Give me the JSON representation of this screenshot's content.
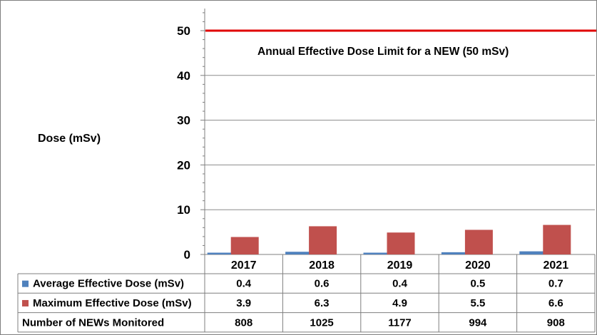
{
  "chart_data": {
    "type": "bar",
    "ylabel": "Dose (mSv)",
    "ylim": [
      0,
      55
    ],
    "yticks": [
      0,
      10,
      20,
      30,
      40,
      50
    ],
    "grid": true,
    "categories": [
      "2017",
      "2018",
      "2019",
      "2020",
      "2021"
    ],
    "series": [
      {
        "name": "Average Effective Dose (mSv)",
        "color": "#4F81BD",
        "values": [
          0.4,
          0.6,
          0.4,
          0.5,
          0.7
        ]
      },
      {
        "name": "Maximum Effective Dose (mSv)",
        "color": "#C0504D",
        "values": [
          3.9,
          6.3,
          4.9,
          5.5,
          6.6
        ]
      }
    ],
    "reference_line": {
      "value": 50,
      "color": "#E00000",
      "label": "Annual Effective Dose Limit for a NEW (50 mSv)"
    },
    "data_table": {
      "rows": [
        {
          "label": "Average Effective Dose (mSv)",
          "legend_color": "#4F81BD",
          "values": [
            "0.4",
            "0.6",
            "0.4",
            "0.5",
            "0.7"
          ]
        },
        {
          "label": "Maximum Effective Dose (mSv)",
          "legend_color": "#C0504D",
          "values": [
            "3.9",
            "6.3",
            "4.9",
            "5.5",
            "6.6"
          ]
        },
        {
          "label": "Number of NEWs Monitored",
          "legend_color": "",
          "values": [
            "808",
            "1025",
            "1177",
            "994",
            "908"
          ]
        }
      ]
    }
  }
}
